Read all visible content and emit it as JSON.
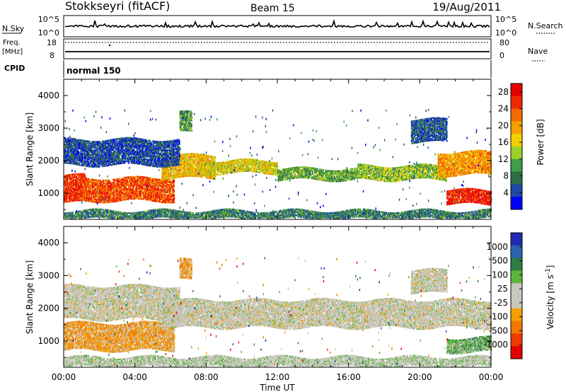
{
  "header": {
    "station": "Stokkseyri (fitACF)",
    "beam": "Beam 15",
    "date": "19/Aug/2011"
  },
  "summary": {
    "nsky_label": "N.Sky",
    "nsky_top_tick": "10^5",
    "nsky_bottom_tick": "10^0",
    "nsearch_label": "N.Search",
    "nsearch_top_tick": "10^5",
    "nsearch_bottom_tick": "10^0",
    "freq_label": "Freq.",
    "freq_unit": "[MHz]",
    "freq_top_tick": "18",
    "freq_bottom_tick": "8",
    "nave_label": "Nave",
    "nave_top_tick": "80",
    "nave_bottom_tick": "0",
    "cpid_label": "CPID",
    "cpid_value": "normal 150"
  },
  "colors": {
    "power_scale": [
      "#0000ff",
      "#1f48a8",
      "#2f6e45",
      "#3f9c4a",
      "#9bcf2a",
      "#f0d000",
      "#f5a000",
      "#f36b00",
      "#ee2800",
      "#e80000"
    ],
    "velocity_scale": [
      "#1f2bb0",
      "#2b63b0",
      "#2f7d44",
      "#5bb53c",
      "#c8c6bd",
      "#c8c6bd",
      "#f4a000",
      "#f07800",
      "#ee3a00",
      "#e00000"
    ],
    "background_scatter": "#c8c6bd"
  },
  "chart_data": [
    {
      "type": "heatmap",
      "panel": "power",
      "ylabel": "Slant Range [km]",
      "xlabel": "Time UT",
      "x_ticks": [
        "00:00",
        "04:00",
        "08:00",
        "12:00",
        "16:00",
        "20:00",
        "00:00"
      ],
      "y_ticks": [
        "1000",
        "2000",
        "3000",
        "4000"
      ],
      "ylim": [
        200,
        4500
      ],
      "colorbar": {
        "label": "Power [dB]",
        "ticks": [
          "4",
          "8",
          "12",
          "16",
          "20",
          "24",
          "28"
        ],
        "range": [
          0,
          30
        ]
      },
      "bands": [
        {
          "t0": 0.0,
          "t1": 1.2,
          "r0": 750,
          "r1": 1600,
          "value": 26
        },
        {
          "t0": 1.0,
          "t1": 6.2,
          "r0": 800,
          "r1": 1500,
          "value": 24
        },
        {
          "t0": 5.5,
          "t1": 8.5,
          "r0": 1500,
          "r1": 2200,
          "value": 18
        },
        {
          "t0": 7.5,
          "t1": 12.0,
          "r0": 1650,
          "r1": 2050,
          "value": 16
        },
        {
          "t0": 12.0,
          "t1": 16.5,
          "r0": 1450,
          "r1": 1800,
          "value": 11
        },
        {
          "t0": 16.5,
          "t1": 21.5,
          "r0": 1450,
          "r1": 1900,
          "value": 13
        },
        {
          "t0": 21.0,
          "t1": 24.0,
          "r0": 1600,
          "r1": 2300,
          "value": 20
        },
        {
          "t0": 21.5,
          "t1": 24.0,
          "r0": 700,
          "r1": 1150,
          "value": 27
        },
        {
          "t0": 0.0,
          "t1": 6.5,
          "r0": 1900,
          "r1": 2700,
          "value": 5
        },
        {
          "t0": 6.5,
          "t1": 7.2,
          "r0": 2900,
          "r1": 3500,
          "value": 10
        },
        {
          "t0": 19.5,
          "t1": 21.5,
          "r0": 2600,
          "r1": 3300,
          "value": 6
        },
        {
          "t0": 0.0,
          "t1": 24.0,
          "r0": 250,
          "r1": 500,
          "value": 8
        }
      ]
    },
    {
      "type": "heatmap",
      "panel": "velocity",
      "ylabel": "Slant Range [km]",
      "xlabel": "Time UT",
      "x_ticks": [
        "00:00",
        "04:00",
        "08:00",
        "12:00",
        "16:00",
        "20:00",
        "00:00"
      ],
      "y_ticks": [
        "1000",
        "2000",
        "3000",
        "4000"
      ],
      "ylim": [
        200,
        4500
      ],
      "colorbar": {
        "label": "Velocity [m s^-1]",
        "ticks": [
          "1000",
          "500",
          "100",
          "25",
          "-25",
          "-100",
          "-500",
          "-1000"
        ],
        "range": [
          -1000,
          1000
        ]
      },
      "bands": [
        {
          "t0": 0.0,
          "t1": 6.2,
          "r0": 750,
          "r1": 1600,
          "value": -300
        },
        {
          "t0": 0.0,
          "t1": 6.5,
          "r0": 1700,
          "r1": 2700,
          "value": 0
        },
        {
          "t0": 5.5,
          "t1": 24.0,
          "r0": 1450,
          "r1": 2300,
          "value": 0
        },
        {
          "t0": 6.5,
          "t1": 7.2,
          "r0": 2900,
          "r1": 3500,
          "value": -300
        },
        {
          "t0": 19.5,
          "t1": 21.5,
          "r0": 2500,
          "r1": 3200,
          "value": 0
        },
        {
          "t0": 21.5,
          "t1": 24.0,
          "r0": 700,
          "r1": 1150,
          "value": 300
        },
        {
          "t0": 0.0,
          "t1": 24.0,
          "r0": 250,
          "r1": 550,
          "value": 80
        }
      ]
    }
  ]
}
